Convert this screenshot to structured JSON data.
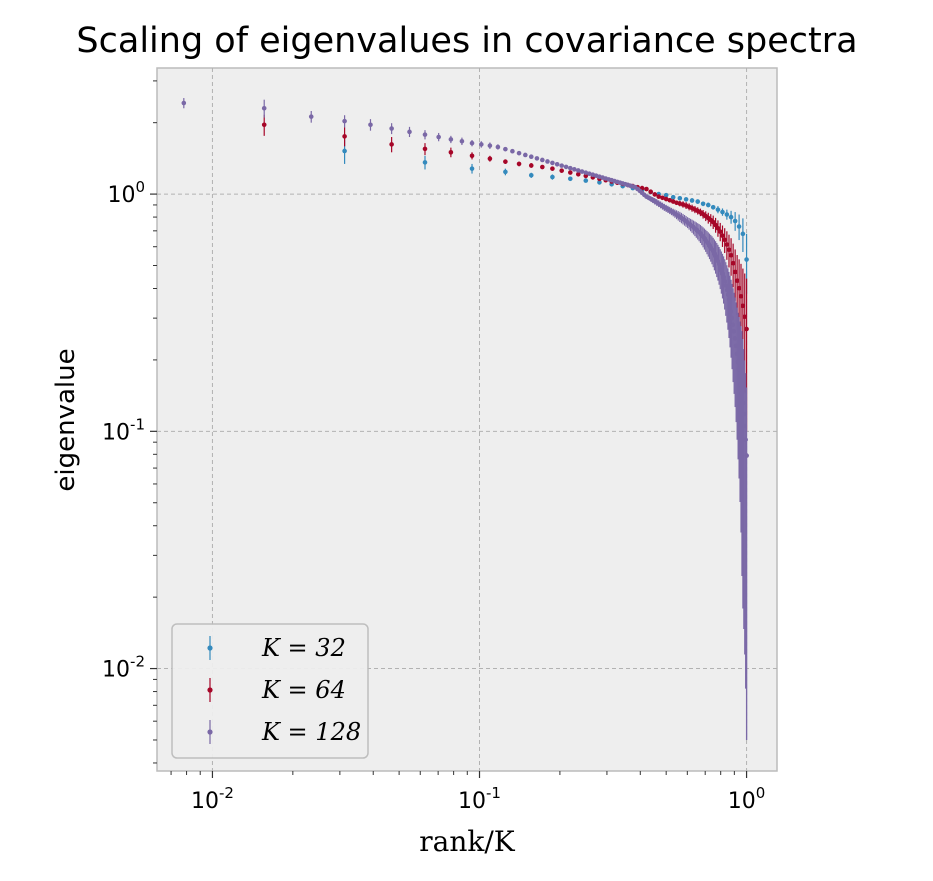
{
  "chart_data": {
    "type": "scatter",
    "title": "Scaling of eigenvalues in covariance spectra",
    "xlabel": "rank/K",
    "ylabel": "eigenvalue",
    "x_scale": "log",
    "y_scale": "log",
    "xlim": [
      0.0062,
      1.3
    ],
    "ylim": [
      0.0037,
      3.4
    ],
    "grid": true,
    "legend_position": "lower-left",
    "x_ticks": [
      {
        "base": "10",
        "exp": "-2",
        "value": 0.01
      },
      {
        "base": "10",
        "exp": "-1",
        "value": 0.1
      },
      {
        "base": "10",
        "exp": "0",
        "value": 1
      }
    ],
    "y_ticks": [
      {
        "base": "10",
        "exp": "-2",
        "value": 0.01
      },
      {
        "base": "10",
        "exp": "-1",
        "value": 0.1
      },
      {
        "base": "10",
        "exp": "0",
        "value": 1
      }
    ],
    "series": [
      {
        "name": "K = 32",
        "K": 32,
        "color": "#348ABD",
        "first_values": [
          1.52,
          1.36,
          1.28,
          1.24,
          1.2,
          1.18,
          1.16,
          1.14,
          1.12,
          1.1,
          1.08,
          1.06,
          1.04
        ],
        "first_errors": [
          0.18,
          0.09,
          0.06,
          0.04,
          0.03,
          0.03,
          0.02,
          0.02,
          0.02,
          0.02,
          0.02,
          0.02,
          0.02
        ],
        "tail_values": [
          1.02,
          1.0,
          0.99,
          0.97,
          0.96,
          0.95,
          0.94,
          0.93,
          0.91,
          0.9,
          0.88,
          0.86,
          0.84,
          0.82,
          0.8,
          0.77,
          0.73,
          0.68,
          0.53
        ],
        "tail_errors": [
          0.02,
          0.02,
          0.02,
          0.02,
          0.02,
          0.02,
          0.02,
          0.02,
          0.02,
          0.02,
          0.02,
          0.03,
          0.03,
          0.04,
          0.05,
          0.07,
          0.09,
          0.11,
          0.15
        ]
      },
      {
        "name": "K = 64",
        "K": 64,
        "color": "#A60628",
        "first_values": [
          1.96,
          1.75,
          1.62,
          1.55,
          1.5,
          1.45,
          1.41,
          1.37,
          1.34,
          1.32,
          1.3,
          1.28
        ],
        "first_errors": [
          0.2,
          0.16,
          0.12,
          0.09,
          0.07,
          0.05,
          0.04,
          0.03,
          0.03,
          0.03,
          0.02,
          0.02
        ],
        "pivot": {
          "frac": 0.42,
          "value": 1.05
        },
        "tail_values": [
          1.05,
          0.98,
          0.95,
          0.92,
          0.9,
          0.87,
          0.84,
          0.8,
          0.76,
          0.7,
          0.63,
          0.55,
          0.44,
          0.36,
          0.27
        ],
        "tail_errors": [
          0.02,
          0.02,
          0.02,
          0.02,
          0.03,
          0.03,
          0.03,
          0.04,
          0.05,
          0.06,
          0.08,
          0.1,
          0.12,
          0.14,
          0.17
        ]
      },
      {
        "name": "K = 128",
        "K": 128,
        "color": "#7A68A6",
        "first_values": [
          2.42,
          2.3,
          2.12,
          2.03,
          1.96,
          1.89,
          1.83,
          1.78,
          1.74,
          1.7,
          1.67,
          1.64,
          1.62,
          1.6,
          1.58
        ],
        "first_errors": [
          0.12,
          0.2,
          0.12,
          0.12,
          0.11,
          0.1,
          0.09,
          0.08,
          0.07,
          0.06,
          0.06,
          0.05,
          0.05,
          0.05,
          0.04
        ],
        "pivot": {
          "frac": 0.38,
          "value": 1.07
        },
        "tail_values": [
          1.07,
          0.98,
          0.93,
          0.88,
          0.84,
          0.8,
          0.76,
          0.72,
          0.68,
          0.63,
          0.58,
          0.52,
          0.45,
          0.37,
          0.28,
          0.2,
          0.14,
          0.079
        ],
        "tail_errors": [
          0.02,
          0.02,
          0.03,
          0.03,
          0.03,
          0.04,
          0.04,
          0.05,
          0.06,
          0.07,
          0.08,
          0.09,
          0.1,
          0.11,
          0.12,
          0.12,
          0.12,
          0.074
        ]
      }
    ]
  }
}
